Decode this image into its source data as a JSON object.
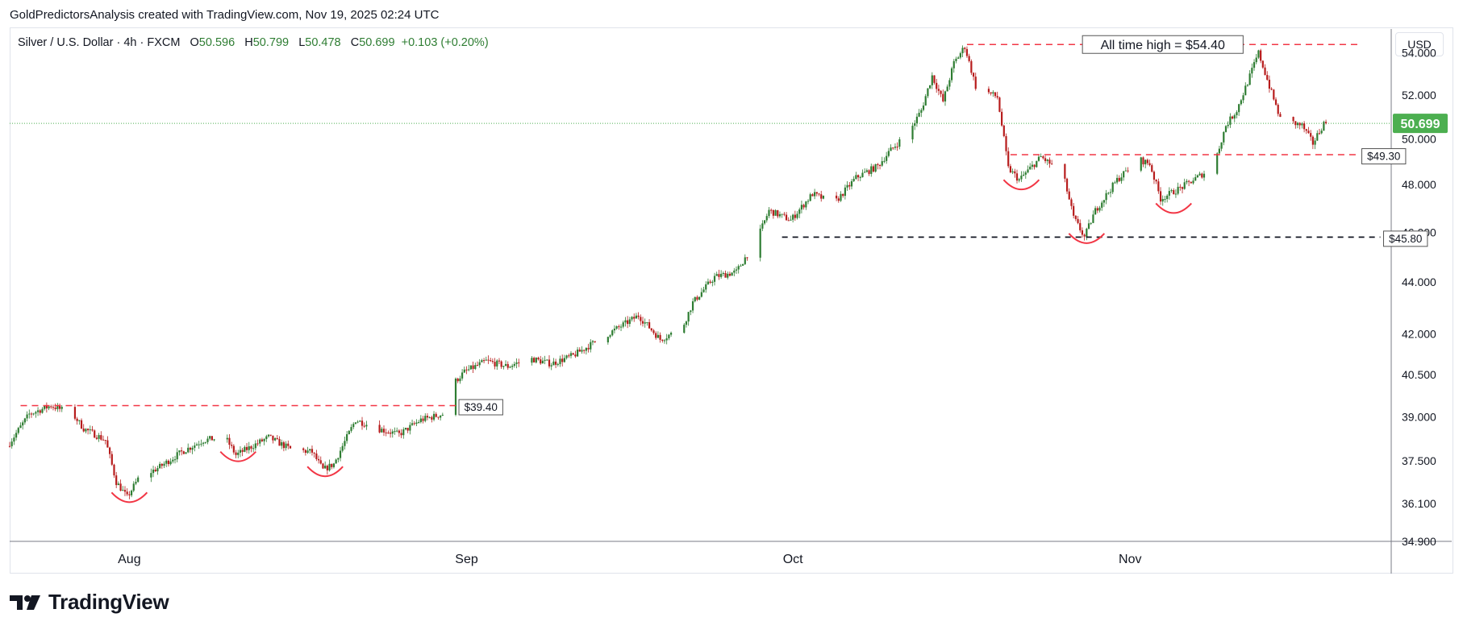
{
  "header": {
    "attribution": "GoldPredictorsAnalysis created with TradingView.com, Nov 19, 2025 02:24 UTC"
  },
  "legend": {
    "symbol": "Silver / U.S. Dollar · 4h · FXCM",
    "open_label": "O",
    "open": "50.596",
    "high_label": "H",
    "high": "50.799",
    "low_label": "L",
    "low": "50.478",
    "close_label": "C",
    "close": "50.699",
    "change": "+0.103 (+0.20%)"
  },
  "currency": "USD",
  "brand": {
    "name": "TradingView"
  },
  "colors": {
    "up": "#26a69a",
    "candle_up": "#2e7d32",
    "candle_down": "#b71c1c",
    "annotation_red": "#f23645",
    "price_tag": "#4caf50"
  },
  "chart_data": {
    "type": "candlestick",
    "title": "Silver / U.S. Dollar · 4h · FXCM",
    "timeframe": "4h",
    "x_range": [
      "2025-07-21",
      "2025-11-25"
    ],
    "ylim": [
      34.9,
      55.0
    ],
    "y_scale": "log",
    "y_ticks": [
      "54.000",
      "52.000",
      "50.000",
      "48.000",
      "46.000",
      "44.000",
      "42.000",
      "40.500",
      "39.000",
      "37.500",
      "36.100",
      "34.900"
    ],
    "x_ticks": [
      {
        "label": "Aug",
        "date": "2025-08-01"
      },
      {
        "label": "Sep",
        "date": "2025-09-01"
      },
      {
        "label": "Oct",
        "date": "2025-10-01"
      },
      {
        "label": "Nov",
        "date": "2025-11-01"
      }
    ],
    "last_price": "50.699",
    "price_path": [
      [
        "2025-07-21",
        38.0
      ],
      [
        "2025-07-23",
        39.1
      ],
      [
        "2025-07-25",
        39.4
      ],
      [
        "2025-07-27",
        39.1
      ],
      [
        "2025-07-28",
        38.6
      ],
      [
        "2025-07-30",
        38.2
      ],
      [
        "2025-07-31",
        36.8
      ],
      [
        "2025-08-01",
        36.3
      ],
      [
        "2025-08-02",
        36.9
      ],
      [
        "2025-08-04",
        37.3
      ],
      [
        "2025-08-06",
        37.8
      ],
      [
        "2025-08-08",
        38.2
      ],
      [
        "2025-08-10",
        38.3
      ],
      [
        "2025-08-11",
        37.7
      ],
      [
        "2025-08-12",
        37.9
      ],
      [
        "2025-08-14",
        38.3
      ],
      [
        "2025-08-16",
        37.9
      ],
      [
        "2025-08-18",
        37.8
      ],
      [
        "2025-08-19",
        37.2
      ],
      [
        "2025-08-20",
        37.4
      ],
      [
        "2025-08-22",
        38.9
      ],
      [
        "2025-08-24",
        38.6
      ],
      [
        "2025-08-26",
        38.4
      ],
      [
        "2025-08-28",
        38.9
      ],
      [
        "2025-08-30",
        39.1
      ],
      [
        "2025-08-31",
        40.2
      ],
      [
        "2025-09-01",
        40.6
      ],
      [
        "2025-09-03",
        41.0
      ],
      [
        "2025-09-05",
        40.8
      ],
      [
        "2025-09-07",
        41.1
      ],
      [
        "2025-09-09",
        40.9
      ],
      [
        "2025-09-11",
        41.2
      ],
      [
        "2025-09-13",
        41.7
      ],
      [
        "2025-09-15",
        42.2
      ],
      [
        "2025-09-17",
        42.7
      ],
      [
        "2025-09-19",
        41.8
      ],
      [
        "2025-09-21",
        42.2
      ],
      [
        "2025-09-22",
        43.2
      ],
      [
        "2025-09-24",
        44.2
      ],
      [
        "2025-09-26",
        44.4
      ],
      [
        "2025-09-28",
        45.8
      ],
      [
        "2025-09-29",
        46.9
      ],
      [
        "2025-09-30",
        46.7
      ],
      [
        "2025-10-01",
        46.5
      ],
      [
        "2025-10-03",
        47.6
      ],
      [
        "2025-10-05",
        47.2
      ],
      [
        "2025-10-07",
        48.3
      ],
      [
        "2025-10-09",
        48.8
      ],
      [
        "2025-10-10",
        49.4
      ],
      [
        "2025-10-12",
        50.4
      ],
      [
        "2025-10-13",
        51.3
      ],
      [
        "2025-10-14",
        52.9
      ],
      [
        "2025-10-15",
        51.7
      ],
      [
        "2025-10-16",
        53.5
      ],
      [
        "2025-10-17",
        54.3
      ],
      [
        "2025-10-18",
        52.4
      ],
      [
        "2025-10-20",
        51.9
      ],
      [
        "2025-10-21",
        48.7
      ],
      [
        "2025-10-22",
        48.2
      ],
      [
        "2025-10-24",
        49.2
      ],
      [
        "2025-10-26",
        48.5
      ],
      [
        "2025-10-27",
        46.6
      ],
      [
        "2025-10-28",
        45.8
      ],
      [
        "2025-10-29",
        46.9
      ],
      [
        "2025-10-31",
        48.2
      ],
      [
        "2025-11-02",
        49.1
      ],
      [
        "2025-11-03",
        48.9
      ],
      [
        "2025-11-04",
        47.4
      ],
      [
        "2025-11-06",
        47.9
      ],
      [
        "2025-11-08",
        48.5
      ],
      [
        "2025-11-09",
        49.0
      ],
      [
        "2025-11-10",
        50.6
      ],
      [
        "2025-11-11",
        51.3
      ],
      [
        "2025-11-12",
        52.6
      ],
      [
        "2025-11-13",
        54.0
      ],
      [
        "2025-11-14",
        52.4
      ],
      [
        "2025-11-15",
        50.9
      ],
      [
        "2025-11-17",
        50.6
      ],
      [
        "2025-11-18",
        49.8
      ],
      [
        "2025-11-19",
        50.7
      ]
    ],
    "annotations": [
      {
        "type": "hline",
        "style": "red-dashed",
        "price": 39.4,
        "from": "2025-07-22",
        "to": "2025-08-31",
        "label": "$39.40"
      },
      {
        "type": "hline",
        "style": "red-dashed",
        "price": 54.4,
        "from": "2025-10-17",
        "to": "2025-11-22",
        "label": "All time high = $54.40"
      },
      {
        "type": "hline",
        "style": "red-dashed",
        "price": 49.3,
        "from": "2025-10-21",
        "to": "2025-11-22",
        "label": "$49.30"
      },
      {
        "type": "hline",
        "style": "black-dashed",
        "price": 45.8,
        "from": "2025-09-30",
        "to": "2025-11-24",
        "label": "$45.80"
      },
      {
        "type": "arc",
        "date": "2025-08-01",
        "price": 36.3
      },
      {
        "type": "arc",
        "date": "2025-08-11",
        "price": 37.65
      },
      {
        "type": "arc",
        "date": "2025-08-19",
        "price": 37.15
      },
      {
        "type": "arc",
        "date": "2025-10-22",
        "price": 48.0
      },
      {
        "type": "arc",
        "date": "2025-10-28",
        "price": 45.75
      },
      {
        "type": "arc",
        "date": "2025-11-05",
        "price": 47.0
      }
    ]
  }
}
